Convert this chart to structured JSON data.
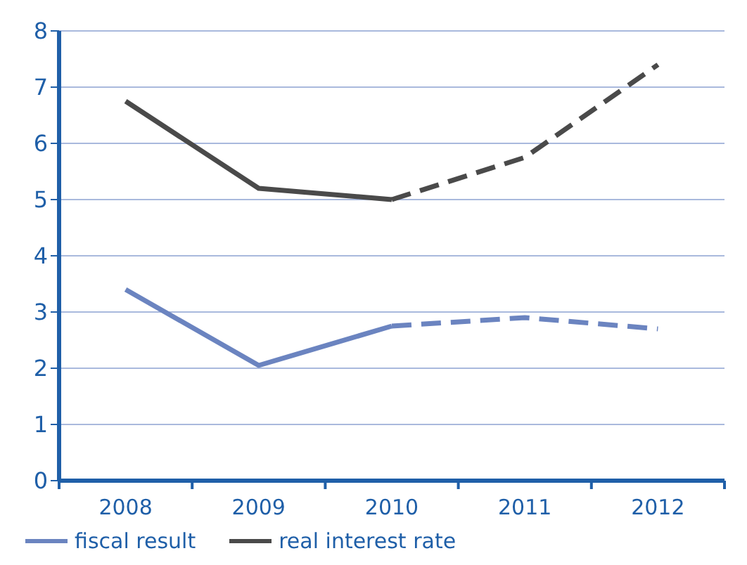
{
  "chart_data": {
    "type": "line",
    "categories": [
      "2008",
      "2009",
      "2010",
      "2011",
      "2012"
    ],
    "series": [
      {
        "name": "fiscal result",
        "color": "#6b84c0",
        "line_style": "solid",
        "values": [
          3.4,
          2.05,
          2.75,
          null,
          null
        ]
      },
      {
        "color": "#6b84c0",
        "line_style": "dashed",
        "values": [
          null,
          null,
          2.75,
          2.9,
          2.7
        ]
      },
      {
        "name": "real interest rate",
        "color": "#4a4a4a",
        "line_style": "solid",
        "values": [
          6.75,
          5.2,
          5.0,
          null,
          null
        ]
      },
      {
        "color": "#4a4a4a",
        "line_style": "dashed",
        "values": [
          null,
          null,
          5.0,
          5.75,
          7.4
        ]
      }
    ],
    "ylim": [
      0,
      8
    ],
    "yticks": [
      0,
      1,
      2,
      3,
      4,
      5,
      6,
      7,
      8
    ],
    "grid": "y",
    "legend": "bottom",
    "marker": "none"
  }
}
